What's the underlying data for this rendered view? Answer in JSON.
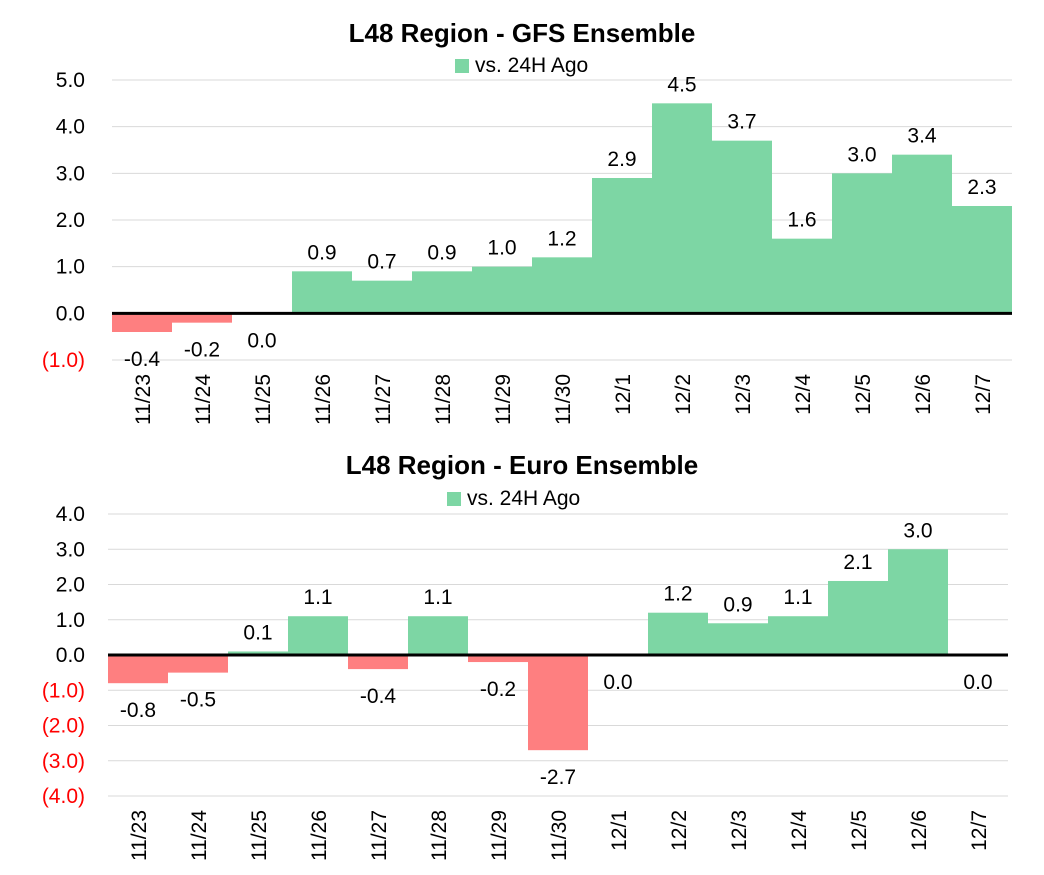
{
  "colors": {
    "positive": "#7dd6a4",
    "negative": "#fe7f80",
    "negative_tick": "#ff0000",
    "grid": "#d9d9d9",
    "axis": "#000000"
  },
  "chart_data": [
    {
      "type": "bar",
      "title": "L48 Region - GFS Ensemble",
      "legend": [
        "vs. 24H Ago"
      ],
      "legend_position": "top-center",
      "grid": true,
      "categories": [
        "11/23",
        "11/24",
        "11/25",
        "11/26",
        "11/27",
        "11/28",
        "11/29",
        "11/30",
        "12/1",
        "12/2",
        "12/3",
        "12/4",
        "12/5",
        "12/6",
        "12/7"
      ],
      "series": [
        {
          "name": "vs. 24H Ago",
          "values": [
            -0.4,
            -0.2,
            0.0,
            0.9,
            0.7,
            0.9,
            1.0,
            1.2,
            2.9,
            4.5,
            3.7,
            1.6,
            3.0,
            3.4,
            2.3
          ],
          "labels": [
            "-0.4",
            "-0.2",
            "0.0",
            "0.9",
            "0.7",
            "0.9",
            "1.0",
            "1.2",
            "2.9",
            "4.5",
            "3.7",
            "1.6",
            "3.0",
            "3.4",
            "2.3"
          ]
        }
      ],
      "ylim": [
        -1,
        5
      ],
      "yticks": [
        5,
        4,
        3,
        2,
        1,
        0,
        -1
      ],
      "ytick_labels": [
        "5.0",
        "4.0",
        "3.0",
        "2.0",
        "1.0",
        "0.0",
        "(1.0)"
      ]
    },
    {
      "type": "bar",
      "title": "L48 Region - Euro Ensemble",
      "legend": [
        "vs. 24H Ago"
      ],
      "legend_position": "top-center",
      "grid": true,
      "categories": [
        "11/23",
        "11/24",
        "11/25",
        "11/26",
        "11/27",
        "11/28",
        "11/29",
        "11/30",
        "12/1",
        "12/2",
        "12/3",
        "12/4",
        "12/5",
        "12/6",
        "12/7"
      ],
      "series": [
        {
          "name": "vs. 24H Ago",
          "values": [
            -0.8,
            -0.5,
            0.1,
            1.1,
            -0.4,
            1.1,
            -0.2,
            -2.7,
            0.0,
            1.2,
            0.9,
            1.1,
            2.1,
            3.0,
            0.0
          ],
          "labels": [
            "-0.8",
            "-0.5",
            "0.1",
            "1.1",
            "-0.4",
            "1.1",
            "-0.2",
            "-2.7",
            "0.0",
            "1.2",
            "0.9",
            "1.1",
            "2.1",
            "3.0",
            "0.0"
          ]
        }
      ],
      "ylim": [
        -4,
        4
      ],
      "yticks": [
        4,
        3,
        2,
        1,
        0,
        -1,
        -2,
        -3,
        -4
      ],
      "ytick_labels": [
        "4.0",
        "3.0",
        "2.0",
        "1.0",
        "0.0",
        "(1.0)",
        "(2.0)",
        "(3.0)",
        "(4.0)"
      ]
    }
  ]
}
